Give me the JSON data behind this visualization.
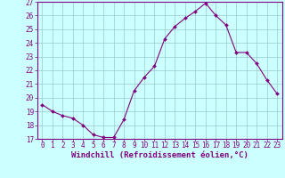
{
  "x": [
    0,
    1,
    2,
    3,
    4,
    5,
    6,
    7,
    8,
    9,
    10,
    11,
    12,
    13,
    14,
    15,
    16,
    17,
    18,
    19,
    20,
    21,
    22,
    23
  ],
  "y": [
    19.5,
    19.0,
    18.7,
    18.5,
    18.0,
    17.3,
    17.1,
    17.1,
    18.4,
    20.5,
    21.5,
    22.3,
    24.3,
    25.2,
    25.8,
    26.3,
    26.9,
    26.0,
    25.3,
    23.3,
    23.3,
    22.5,
    21.3,
    20.3
  ],
  "line_color": "#800080",
  "marker": "D",
  "marker_size": 2.0,
  "line_width": 0.8,
  "bg_color": "#ccffff",
  "grid_color": "#99cccc",
  "xlabel": "Windchill (Refroidissement éolien,°C)",
  "xlabel_fontsize": 6.5,
  "xlabel_color": "#800080",
  "tick_color": "#800080",
  "tick_fontsize": 5.5,
  "ylim": [
    17,
    27
  ],
  "yticks": [
    17,
    18,
    19,
    20,
    21,
    22,
    23,
    24,
    25,
    26,
    27
  ],
  "xticks": [
    0,
    1,
    2,
    3,
    4,
    5,
    6,
    7,
    8,
    9,
    10,
    11,
    12,
    13,
    14,
    15,
    16,
    17,
    18,
    19,
    20,
    21,
    22,
    23
  ],
  "xlim": [
    -0.5,
    23.5
  ]
}
